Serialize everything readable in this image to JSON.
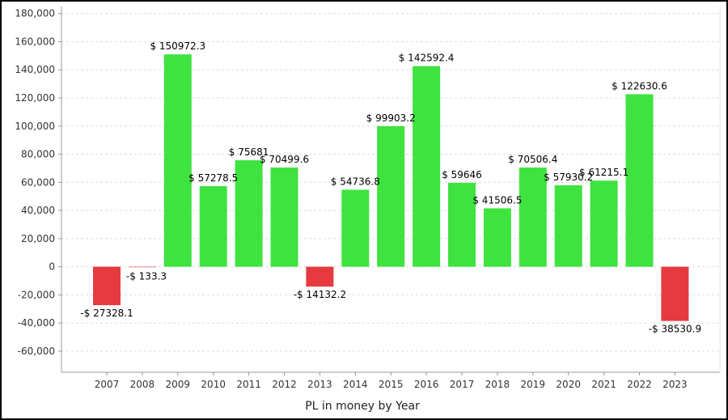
{
  "chart_data": {
    "type": "bar",
    "title": "",
    "xlabel": "PL in money by Year",
    "ylabel": "",
    "categories": [
      "2007",
      "2008",
      "2009",
      "2010",
      "2011",
      "2012",
      "2013",
      "2014",
      "2015",
      "2016",
      "2017",
      "2018",
      "2019",
      "2020",
      "2021",
      "2022",
      "2023"
    ],
    "values": [
      -27328.1,
      -133.3,
      150972.3,
      57278.5,
      75681,
      70499.6,
      -14132.2,
      54736.8,
      99903.2,
      142592.4,
      59646,
      41506.5,
      70506.4,
      57930.2,
      61215.1,
      122630.6,
      -38530.9
    ],
    "data_labels": [
      "-$ 27328.1",
      "-$ 133.3",
      "$ 150972.3",
      "$ 57278.5",
      "$ 75681",
      "$ 70499.6",
      "-$ 14132.2",
      "$ 54736.8",
      "$ 99903.2",
      "$ 142592.4",
      "$ 59646",
      "$ 41506.5",
      "$ 70506.4",
      "$ 57930.2",
      "$ 61215.1",
      "$ 122630.6",
      "-$ 38530.9"
    ],
    "ylim": [
      -75000,
      185000
    ],
    "yticks": [
      -60000,
      -40000,
      -20000,
      0,
      20000,
      40000,
      60000,
      80000,
      100000,
      120000,
      140000,
      160000,
      180000
    ],
    "ytick_labels": [
      "-60,000",
      "-40,000",
      "-20,000",
      "0",
      "20,000",
      "40,000",
      "60,000",
      "80,000",
      "100,000",
      "120,000",
      "140,000",
      "160,000",
      "180,000"
    ],
    "grid": true,
    "colors": {
      "positive": "#3fe33f",
      "negative": "#e63a3f",
      "grid": "#dcdcdc",
      "axis": "#999999"
    }
  }
}
